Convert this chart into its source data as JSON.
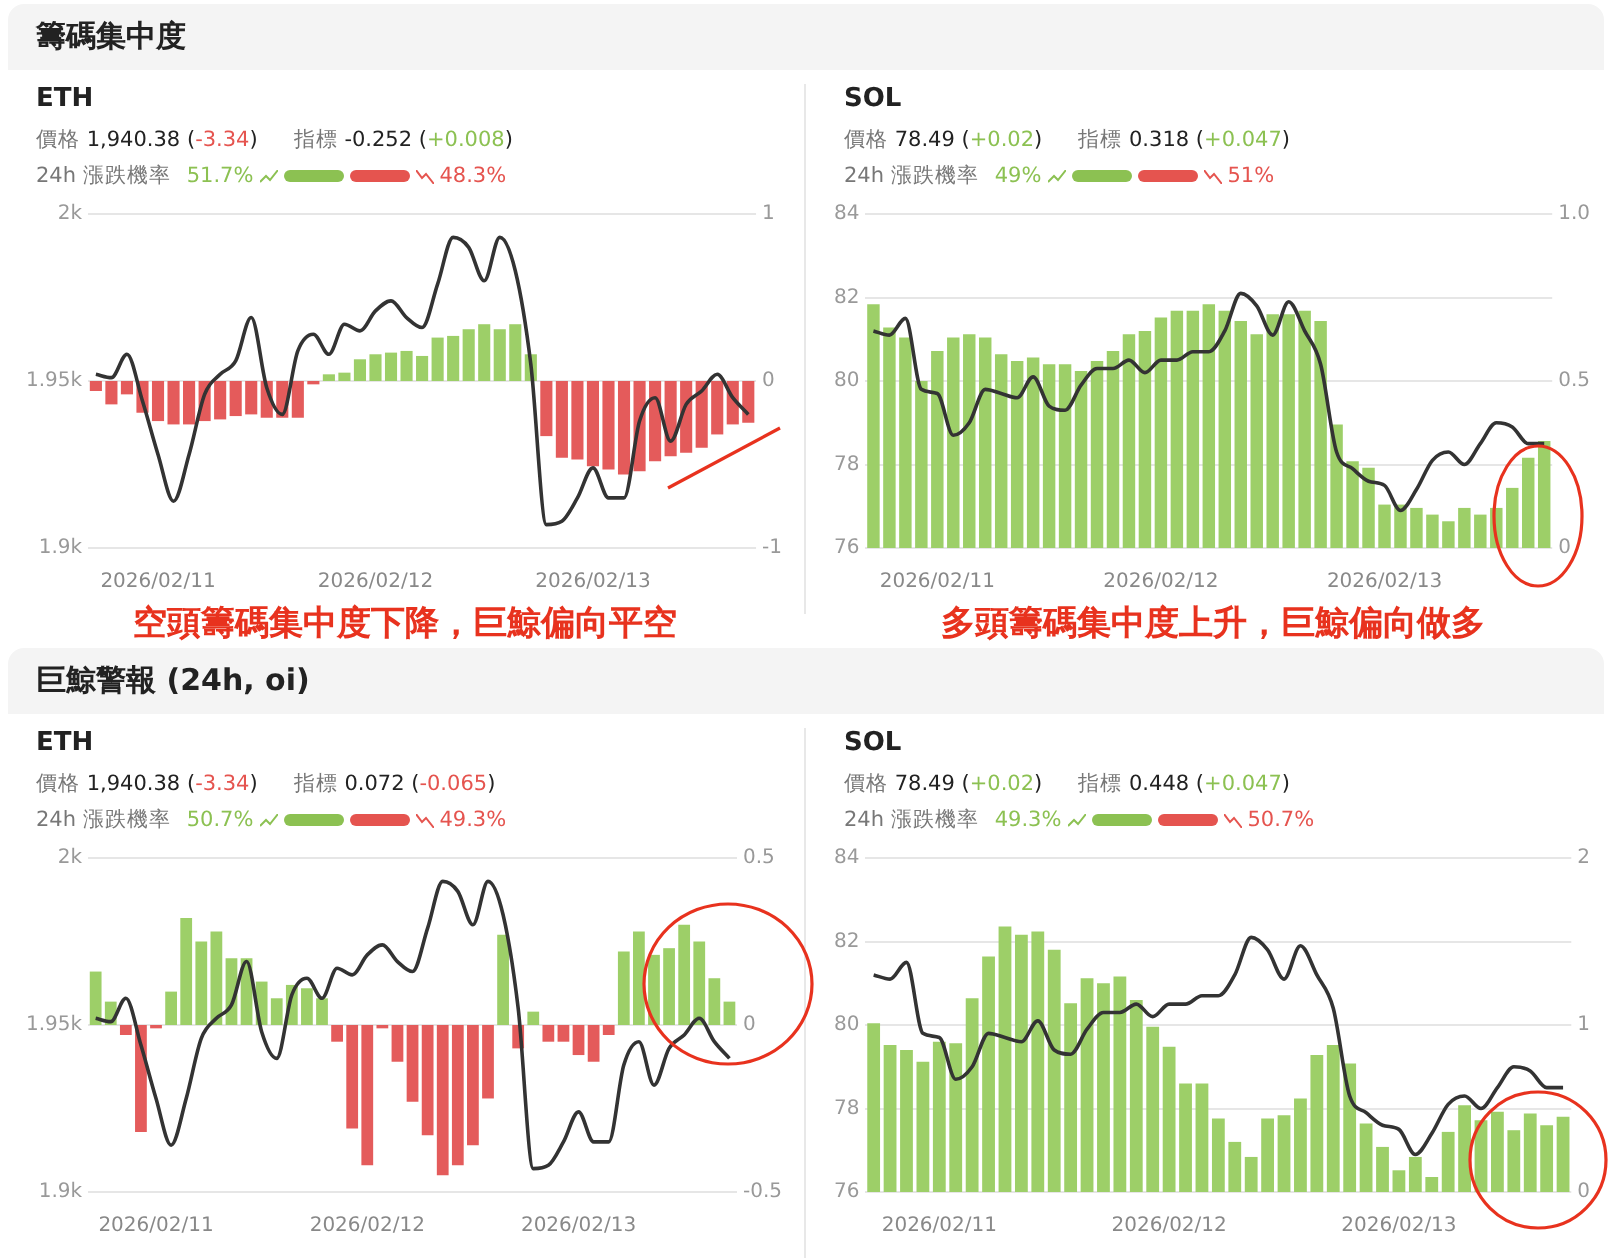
{
  "chart_data": [
    {
      "type": "bar",
      "title": "籌碼集中度",
      "subtitle": "ETH",
      "annotations": [
        "價格 1,940.38 (-3.34)",
        "指標 -0.252 (+0.008)",
        "24h 漲跌機率",
        "51.7%",
        "48.3%",
        "空頭籌碼集中度下降，巨鯨偏向平空"
      ],
      "categories": [
        null,
        null,
        null,
        null,
        "2026/02/11",
        null,
        null,
        null,
        null,
        null,
        null,
        null,
        null,
        null,
        null,
        null,
        null,
        null,
        "2026/02/12",
        null,
        null,
        null,
        null,
        null,
        null,
        null,
        null,
        null,
        null,
        null,
        null,
        null,
        "2026/02/13",
        null,
        null,
        null,
        null,
        null,
        null,
        null,
        null,
        null,
        null
      ],
      "series": [
        {
          "axis": "y2",
          "values": [
            -0.06,
            -0.14,
            -0.08,
            -0.19,
            -0.24,
            -0.26,
            -0.26,
            -0.24,
            -0.23,
            -0.21,
            -0.2,
            -0.22,
            -0.22,
            -0.22,
            -0.02,
            0.04,
            0.05,
            0.13,
            0.16,
            0.17,
            0.18,
            0.15,
            0.26,
            0.27,
            0.31,
            0.34,
            0.31,
            0.34,
            0.16,
            -0.33,
            -0.46,
            -0.47,
            -0.51,
            -0.53,
            -0.56,
            -0.54,
            -0.48,
            -0.45,
            -0.43,
            -0.4,
            -0.32,
            -0.26,
            -0.25
          ],
          "colors": [
            "#e45b5b",
            "#e45b5b",
            "#e45b5b",
            "#e45b5b",
            "#e45b5b",
            "#e45b5b",
            "#e45b5b",
            "#e45b5b",
            "#e45b5b",
            "#e45b5b",
            "#e45b5b",
            "#e45b5b",
            "#e45b5b",
            "#e45b5b",
            "#e45b5b",
            "#9dcf68",
            "#9dcf68",
            "#9dcf68",
            "#9dcf68",
            "#9dcf68",
            "#9dcf68",
            "#9dcf68",
            "#9dcf68",
            "#9dcf68",
            "#9dcf68",
            "#9dcf68",
            "#9dcf68",
            "#9dcf68",
            "#9dcf68",
            "#e45b5b",
            "#e45b5b",
            "#e45b5b",
            "#e45b5b",
            "#e45b5b",
            "#e45b5b",
            "#e45b5b",
            "#e45b5b",
            "#e45b5b",
            "#e45b5b",
            "#e45b5b",
            "#e45b5b",
            "#e45b5b",
            "#e45b5b"
          ]
        },
        {
          "type": "line",
          "color": "#333333",
          "marker": "none",
          "values": [
            1952,
            1951,
            1958,
            1944,
            1928,
            1914,
            1928,
            1946,
            1952,
            1956,
            1969,
            1948,
            1940,
            1959,
            1964,
            1958,
            1967,
            1965,
            1971,
            1974,
            1969,
            1966,
            1979,
            1993,
            1990,
            1980,
            1993,
            1983,
            1955,
            1907,
            1908,
            1915,
            1924,
            1915,
            1915,
            1938,
            1945,
            1932,
            1943,
            1947,
            1952,
            1945,
            1940
          ]
        }
      ],
      "ylim": [
        1900,
        2000
      ],
      "yticks": [
        {
          "value": 1900,
          "label": "1.9k"
        },
        {
          "value": 1950,
          "label": "1.95k"
        },
        {
          "value": 2000,
          "label": "2k"
        }
      ],
      "y2lim": [
        -1,
        1
      ],
      "y2ticks": [
        -1,
        0,
        1
      ],
      "grid": "y"
    },
    {
      "type": "bar",
      "subtitle": "SOL",
      "annotations": [
        "價格 78.49 (+0.02)",
        "指標 0.318 (+0.047)",
        "24h 漲跌機率",
        "49%",
        "51%",
        "多頭籌碼集中度上升，巨鯨偏向做多"
      ],
      "categories": [
        null,
        null,
        null,
        null,
        "2026/02/11",
        null,
        null,
        null,
        null,
        null,
        null,
        null,
        null,
        null,
        null,
        null,
        null,
        null,
        "2026/02/12",
        null,
        null,
        null,
        null,
        null,
        null,
        null,
        null,
        null,
        null,
        null,
        null,
        null,
        "2026/02/13",
        null,
        null,
        null,
        null,
        null,
        null,
        null,
        null,
        null,
        null
      ],
      "series": [
        {
          "axis": "y2",
          "color": "#9dcf68",
          "values": [
            0.73,
            0.66,
            0.63,
            0.5,
            0.59,
            0.63,
            0.64,
            0.63,
            0.58,
            0.56,
            0.57,
            0.55,
            0.55,
            0.53,
            0.56,
            0.59,
            0.64,
            0.65,
            0.69,
            0.71,
            0.71,
            0.73,
            0.71,
            0.68,
            0.64,
            0.7,
            0.7,
            0.71,
            0.68,
            0.37,
            0.26,
            0.24,
            0.13,
            0.13,
            0.12,
            0.1,
            0.08,
            0.12,
            0.1,
            0.12,
            0.18,
            0.27,
            0.32
          ]
        },
        {
          "type": "line",
          "color": "#333333",
          "marker": "none",
          "values": [
            81.2,
            81.1,
            81.5,
            79.8,
            79.7,
            78.7,
            79,
            79.8,
            79.7,
            79.6,
            80.1,
            79.4,
            79.3,
            79.9,
            80.3,
            80.3,
            80.5,
            80.2,
            80.5,
            80.5,
            80.7,
            80.7,
            81.2,
            82.1,
            81.8,
            81.1,
            81.9,
            81.2,
            80.4,
            78.3,
            77.9,
            77.6,
            77.5,
            76.9,
            77.4,
            78.1,
            78.3,
            78,
            78.5,
            79,
            78.9,
            78.5,
            78.5
          ]
        }
      ],
      "ylim": [
        76,
        84
      ],
      "yticks": [
        76,
        78,
        80,
        82,
        84
      ],
      "y2lim": [
        0,
        1
      ],
      "y2ticks": [
        0,
        0.5,
        {
          "value": 1,
          "label": "1.0"
        }
      ],
      "grid": "y"
    },
    {
      "type": "bar",
      "title": "巨鯨警報 (24h, oi)",
      "subtitle": "ETH",
      "annotations": [
        "價格 1,940.38 (-3.34)",
        "指標 0.072 (-0.065)",
        "24h 漲跌機率",
        "50.7%",
        "49.3%"
      ],
      "categories": [
        null,
        null,
        null,
        null,
        "2026/02/11",
        null,
        null,
        null,
        null,
        null,
        null,
        null,
        null,
        null,
        null,
        null,
        null,
        null,
        "2026/02/12",
        null,
        null,
        null,
        null,
        null,
        null,
        null,
        null,
        null,
        null,
        null,
        null,
        null,
        "2026/02/13",
        null,
        null,
        null,
        null,
        null,
        null,
        null,
        null,
        null,
        null
      ],
      "series": [
        {
          "axis": "y2",
          "values": [
            0.16,
            0.07,
            -0.03,
            -0.32,
            -0.01,
            0.1,
            0.32,
            0.25,
            0.28,
            0.2,
            0.2,
            0.13,
            0.08,
            0.12,
            0.11,
            0.08,
            -0.05,
            -0.31,
            -0.42,
            -0.01,
            -0.11,
            -0.23,
            -0.33,
            -0.45,
            -0.42,
            -0.36,
            -0.22,
            0.27,
            -0.07,
            0.04,
            -0.05,
            -0.05,
            -0.09,
            -0.11,
            -0.03,
            0.22,
            0.28,
            0.21,
            0.23,
            0.3,
            0.25,
            0.14,
            0.07
          ],
          "colors": [
            "#9dcf68",
            "#9dcf68",
            "#e45b5b",
            "#e45b5b",
            "#e45b5b",
            "#9dcf68",
            "#9dcf68",
            "#9dcf68",
            "#9dcf68",
            "#9dcf68",
            "#9dcf68",
            "#9dcf68",
            "#9dcf68",
            "#9dcf68",
            "#9dcf68",
            "#9dcf68",
            "#e45b5b",
            "#e45b5b",
            "#e45b5b",
            "#e45b5b",
            "#e45b5b",
            "#e45b5b",
            "#e45b5b",
            "#e45b5b",
            "#e45b5b",
            "#e45b5b",
            "#e45b5b",
            "#9dcf68",
            "#e45b5b",
            "#9dcf68",
            "#e45b5b",
            "#e45b5b",
            "#e45b5b",
            "#e45b5b",
            "#e45b5b",
            "#9dcf68",
            "#9dcf68",
            "#9dcf68",
            "#9dcf68",
            "#9dcf68",
            "#9dcf68",
            "#9dcf68",
            "#9dcf68"
          ]
        },
        {
          "type": "line",
          "color": "#333333",
          "marker": "none",
          "values": [
            1952,
            1951,
            1958,
            1944,
            1928,
            1914,
            1928,
            1946,
            1952,
            1956,
            1969,
            1948,
            1940,
            1959,
            1964,
            1958,
            1967,
            1965,
            1971,
            1974,
            1969,
            1966,
            1979,
            1993,
            1990,
            1980,
            1993,
            1983,
            1955,
            1907,
            1908,
            1915,
            1924,
            1915,
            1915,
            1938,
            1945,
            1932,
            1943,
            1947,
            1952,
            1945,
            1940
          ]
        }
      ],
      "ylim": [
        1900,
        2000
      ],
      "yticks": [
        {
          "value": 1900,
          "label": "1.9k"
        },
        {
          "value": 1950,
          "label": "1.95k"
        },
        {
          "value": 2000,
          "label": "2k"
        }
      ],
      "y2lim": [
        -0.5,
        0.5
      ],
      "y2ticks": [
        -0.5,
        0,
        0.5
      ],
      "grid": "y"
    },
    {
      "type": "bar",
      "subtitle": "SOL",
      "annotations": [
        "價格 78.49 (+0.02)",
        "指標 0.448 (+0.047)",
        "24h 漲跌機率",
        "49.3%",
        "50.7%"
      ],
      "categories": [
        null,
        null,
        null,
        null,
        "2026/02/11",
        null,
        null,
        null,
        null,
        null,
        null,
        null,
        null,
        null,
        null,
        null,
        null,
        null,
        "2026/02/12",
        null,
        null,
        null,
        null,
        null,
        null,
        null,
        null,
        null,
        null,
        null,
        null,
        null,
        "2026/02/13",
        null,
        null,
        null,
        null,
        null,
        null,
        null,
        null,
        null,
        null
      ],
      "series": [
        {
          "axis": "y2",
          "color": "#9dcf68",
          "values": [
            1.01,
            0.88,
            0.85,
            0.78,
            0.9,
            0.89,
            1.16,
            1.41,
            1.59,
            1.54,
            1.56,
            1.45,
            1.13,
            1.28,
            1.25,
            1.29,
            1.15,
            0.99,
            0.87,
            0.65,
            0.65,
            0.44,
            0.3,
            0.21,
            0.44,
            0.46,
            0.56,
            0.82,
            0.88,
            0.77,
            0.41,
            0.27,
            0.13,
            0.21,
            0.09,
            0.36,
            0.52,
            0.43,
            0.48,
            0.37,
            0.47,
            0.4,
            0.45
          ]
        },
        {
          "type": "line",
          "color": "#333333",
          "marker": "none",
          "values": [
            81.2,
            81.1,
            81.5,
            79.8,
            79.7,
            78.7,
            79,
            79.8,
            79.7,
            79.6,
            80.1,
            79.4,
            79.3,
            79.9,
            80.3,
            80.3,
            80.5,
            80.2,
            80.5,
            80.5,
            80.7,
            80.7,
            81.2,
            82.1,
            81.8,
            81.1,
            81.9,
            81.2,
            80.4,
            78.3,
            77.9,
            77.6,
            77.5,
            76.9,
            77.4,
            78.1,
            78.3,
            78,
            78.5,
            79,
            78.9,
            78.5,
            78.5
          ]
        }
      ],
      "ylim": [
        76,
        84
      ],
      "yticks": [
        76,
        78,
        80,
        82,
        84
      ],
      "y2lim": [
        0,
        2
      ],
      "y2ticks": [
        0,
        1,
        2
      ],
      "grid": "y"
    }
  ]
}
